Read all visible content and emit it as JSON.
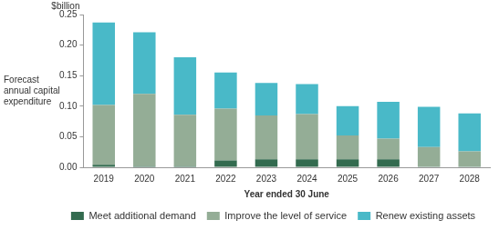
{
  "chart_data": {
    "type": "bar",
    "stacked": true,
    "y_unit_label": "$billion",
    "y_label": "Forecast annual capital expenditure",
    "x_label": "Year ended 30 June",
    "categories": [
      "2019",
      "2020",
      "2021",
      "2022",
      "2023",
      "2024",
      "2025",
      "2026",
      "2027",
      "2028"
    ],
    "series": [
      {
        "name": "Meet additional demand",
        "color": "#336b4f",
        "values": [
          0.004,
          0.002,
          0.002,
          0.011,
          0.013,
          0.013,
          0.013,
          0.013,
          0.001,
          0.001
        ]
      },
      {
        "name": "Improve the level of service",
        "color": "#94ad96",
        "values": [
          0.098,
          0.118,
          0.084,
          0.085,
          0.072,
          0.074,
          0.039,
          0.034,
          0.032,
          0.025
        ]
      },
      {
        "name": "Renew existing assets",
        "color": "#49b9c8",
        "values": [
          0.135,
          0.101,
          0.094,
          0.059,
          0.053,
          0.049,
          0.048,
          0.06,
          0.066,
          0.062
        ]
      }
    ],
    "ylim": [
      0,
      0.25
    ],
    "yticks": [
      {
        "value": 0,
        "label": "0.00"
      },
      {
        "value": 0.05,
        "label": "0.05"
      },
      {
        "value": 0.1,
        "label": "0.10"
      },
      {
        "value": 0.15,
        "label": "0.15"
      },
      {
        "value": 0.2,
        "label": "0.20"
      },
      {
        "value": 0.25,
        "label": "0.25"
      }
    ],
    "grid": false,
    "legend": "bottom"
  }
}
